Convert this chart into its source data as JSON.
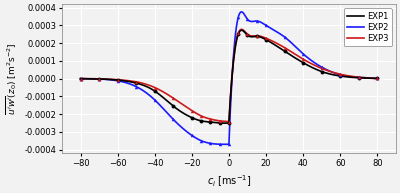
{
  "title": "",
  "xlabel": "$c_i$ [ms$^{-1}$]",
  "ylabel": "$\\overline{u'w'}(z_0)$ [m$^2$s$^{-2}$]",
  "xlim": [
    -90,
    90
  ],
  "ylim": [
    -0.00042,
    0.00042
  ],
  "yticks": [
    -0.0004,
    -0.0003,
    -0.0002,
    -0.0001,
    0.0,
    0.0001,
    0.0002,
    0.0003,
    0.0004
  ],
  "xticks": [
    -80,
    -60,
    -40,
    -20,
    0,
    20,
    40,
    60,
    80
  ],
  "legend_entries": [
    "EXP1",
    "EXP2",
    "EXP3"
  ],
  "colors": [
    "black",
    "#1a1aff",
    "#cc1a1a"
  ],
  "background_color": "#f2f2f2",
  "exp1_x": [
    -80,
    -70,
    -60,
    -50,
    -40,
    -30,
    -20,
    -15,
    -10,
    -5,
    0,
    5,
    10,
    15,
    20,
    30,
    40,
    50,
    60,
    70,
    80
  ],
  "exp1_y": [
    0.0,
    -2e-06,
    -8e-06,
    -2.5e-05,
    -7e-05,
    -0.000155,
    -0.00022,
    -0.000238,
    -0.000245,
    -0.00025,
    -0.00025,
    0.00025,
    0.000245,
    0.000238,
    0.00022,
    0.000155,
    9e-05,
    4e-05,
    1.5e-05,
    5e-06,
    1e-06
  ],
  "exp2_x": [
    -80,
    -70,
    -60,
    -50,
    -40,
    -30,
    -20,
    -15,
    -10,
    -5,
    0,
    5,
    10,
    15,
    20,
    30,
    40,
    50,
    60,
    70,
    80
  ],
  "exp2_y": [
    0.0,
    -2e-06,
    -1.2e-05,
    -4.5e-05,
    -0.00012,
    -0.00023,
    -0.00032,
    -0.00035,
    -0.000365,
    -0.00037,
    -0.00037,
    0.000345,
    0.000335,
    0.000325,
    0.0003,
    0.000235,
    0.00014,
    6.5e-05,
    2.2e-05,
    7e-06,
    1e-06
  ],
  "exp3_x": [
    -80,
    -70,
    -60,
    -50,
    -40,
    -30,
    -20,
    -15,
    -10,
    -5,
    0,
    5,
    10,
    15,
    20,
    30,
    40,
    50,
    60,
    70,
    80
  ],
  "exp3_y": [
    0.0,
    -1e-06,
    -6e-06,
    -1.8e-05,
    -5e-05,
    -0.00011,
    -0.00018,
    -0.00021,
    -0.000228,
    -0.000238,
    -0.000242,
    0.000255,
    0.00025,
    0.000242,
    0.000228,
    0.000175,
    0.00011,
    5.8e-05,
    2.5e-05,
    8e-06,
    1e-06
  ],
  "exp1_markers_x": [
    -80,
    -70,
    -60,
    -50,
    -40,
    -30,
    -20,
    -15,
    -10,
    -5,
    0,
    5,
    10,
    15,
    20,
    30,
    40,
    50,
    60,
    70,
    80
  ],
  "exp1_markers_y": [
    0.0,
    -2e-06,
    -8e-06,
    -2.5e-05,
    -7e-05,
    -0.000155,
    -0.00022,
    -0.000238,
    -0.000245,
    -0.00025,
    -0.00025,
    0.00025,
    0.000245,
    0.000238,
    0.00022,
    0.000155,
    9e-05,
    4e-05,
    1.5e-05,
    5e-06,
    1e-06
  ]
}
